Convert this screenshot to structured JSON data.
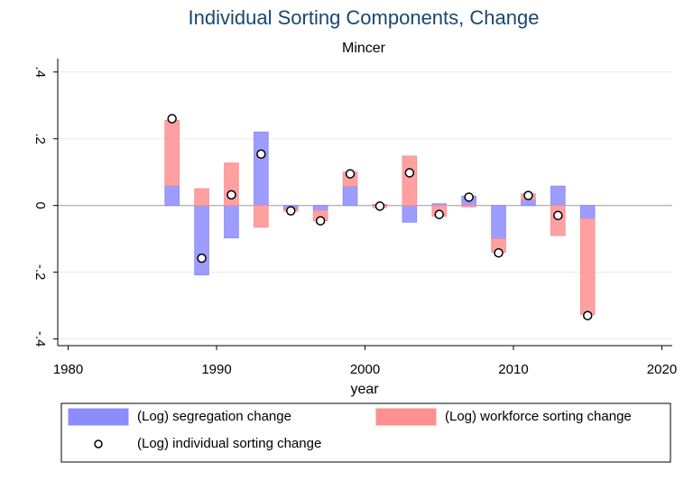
{
  "chart_data": {
    "type": "bar",
    "title": "Individual Sorting Components, Change",
    "subtitle": "Mincer",
    "x_label": "year",
    "x": [
      1987,
      1989,
      1991,
      1993,
      1995,
      1997,
      1999,
      2001,
      2003,
      2005,
      2007,
      2009,
      2011,
      2013,
      2015
    ],
    "series": [
      {
        "name": "(Log) segregation change",
        "color": "#8c8cff",
        "type": "bar",
        "values": [
          0.06,
          -0.208,
          -0.097,
          0.22,
          -0.012,
          -0.015,
          0.058,
          0.003,
          -0.05,
          0.005,
          0.028,
          -0.1,
          0.018,
          0.058,
          -0.04
        ]
      },
      {
        "name": "(Log) workforce sorting change",
        "color": "#ff9090",
        "type": "bar",
        "values": [
          0.195,
          0.05,
          0.127,
          -0.065,
          -0.005,
          -0.031,
          0.042,
          -0.006,
          0.148,
          -0.032,
          -0.004,
          -0.04,
          0.017,
          -0.09,
          -0.287
        ]
      },
      {
        "name": "(Log) individual sorting change",
        "color": "#ffffff",
        "type": "scatter",
        "values": [
          0.26,
          -0.158,
          0.032,
          0.154,
          -0.016,
          -0.046,
          0.095,
          -0.002,
          0.098,
          -0.027,
          0.025,
          -0.142,
          0.03,
          -0.03,
          -0.33
        ]
      }
    ],
    "xlim": [
      1979.3,
      2020.7
    ],
    "xticks": [
      1980,
      1990,
      2000,
      2010,
      2020
    ],
    "ylim": [
      -0.42,
      0.44
    ],
    "yticks": [
      {
        "value": 0.4,
        "label": ".4"
      },
      {
        "value": 0.2,
        "label": ".2"
      },
      {
        "value": 0,
        "label": "0"
      },
      {
        "value": -0.2,
        "label": "-.2"
      },
      {
        "value": -0.4,
        "label": "-.4"
      }
    ],
    "grid": true
  }
}
